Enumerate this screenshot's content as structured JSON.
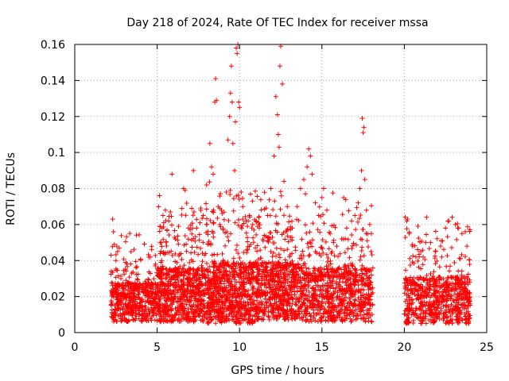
{
  "chart_data": {
    "type": "scatter",
    "title": "Day 218 of 2024, Rate Of TEC Index for receiver mssa",
    "xlabel": "GPS time / hours",
    "ylabel": "ROTI / TECUs",
    "xlim": [
      0,
      25
    ],
    "ylim": [
      0,
      0.16
    ],
    "x_ticks": [
      0,
      5,
      10,
      15,
      20,
      25
    ],
    "y_ticks": [
      0,
      0.02,
      0.04,
      0.06,
      0.08,
      0.1,
      0.12,
      0.14,
      0.16
    ],
    "x_tick_labels": [
      "0",
      "5",
      "10",
      "15",
      "20",
      "25"
    ],
    "y_tick_labels": [
      "0",
      "0.02",
      "0.04",
      "0.06",
      "0.08",
      "0.1",
      "0.12",
      "0.14",
      "0.16"
    ],
    "grid": true,
    "marker": "+",
    "color": "#ff0000",
    "series": [
      {
        "name": "ROTI",
        "points": [
          [
            2.2,
            0.043
          ],
          [
            2.3,
            0.063
          ],
          [
            2.35,
            0.056
          ],
          [
            2.4,
            0.049
          ],
          [
            2.5,
            0.04
          ],
          [
            2.55,
            0.048
          ],
          [
            2.6,
            0.045
          ],
          [
            2.7,
            0.047
          ],
          [
            2.8,
            0.03
          ],
          [
            3.0,
            0.022
          ],
          [
            3.3,
            0.018
          ],
          [
            3.6,
            0.02
          ],
          [
            3.9,
            0.025
          ],
          [
            4.2,
            0.022
          ],
          [
            4.6,
            0.019
          ],
          [
            4.9,
            0.038
          ],
          [
            5.1,
            0.031
          ],
          [
            5.25,
            0.05
          ],
          [
            5.3,
            0.058
          ],
          [
            5.35,
            0.065
          ],
          [
            5.4,
            0.061
          ],
          [
            5.5,
            0.068
          ],
          [
            5.6,
            0.057
          ],
          [
            5.7,
            0.062
          ],
          [
            5.8,
            0.067
          ],
          [
            5.9,
            0.088
          ],
          [
            6.1,
            0.052
          ],
          [
            6.3,
            0.059
          ],
          [
            6.5,
            0.069
          ],
          [
            6.6,
            0.08
          ],
          [
            6.7,
            0.079
          ],
          [
            6.9,
            0.058
          ],
          [
            7.1,
            0.069
          ],
          [
            7.2,
            0.09
          ],
          [
            7.4,
            0.058
          ],
          [
            7.6,
            0.061
          ],
          [
            7.8,
            0.065
          ],
          [
            8.0,
            0.082
          ],
          [
            8.2,
            0.105
          ],
          [
            8.3,
            0.092
          ],
          [
            8.4,
            0.088
          ],
          [
            8.5,
            0.128
          ],
          [
            8.55,
            0.141
          ],
          [
            8.6,
            0.129
          ],
          [
            8.7,
            0.07
          ],
          [
            8.8,
            0.06
          ],
          [
            9.0,
            0.057
          ],
          [
            9.2,
            0.078
          ],
          [
            9.3,
            0.107
          ],
          [
            9.4,
            0.12
          ],
          [
            9.45,
            0.133
          ],
          [
            9.5,
            0.148
          ],
          [
            9.55,
            0.128
          ],
          [
            9.6,
            0.105
          ],
          [
            9.7,
            0.09
          ],
          [
            9.75,
            0.117
          ],
          [
            9.8,
            0.158
          ],
          [
            9.85,
            0.155
          ],
          [
            9.9,
            0.16
          ],
          [
            9.95,
            0.128
          ],
          [
            10.0,
            0.125
          ],
          [
            10.1,
            0.078
          ],
          [
            10.2,
            0.07
          ],
          [
            10.4,
            0.062
          ],
          [
            10.6,
            0.065
          ],
          [
            10.8,
            0.06
          ],
          [
            11.0,
            0.062
          ],
          [
            11.2,
            0.058
          ],
          [
            11.5,
            0.054
          ],
          [
            11.7,
            0.065
          ],
          [
            11.9,
            0.08
          ],
          [
            12.1,
            0.098
          ],
          [
            12.2,
            0.131
          ],
          [
            12.3,
            0.121
          ],
          [
            12.35,
            0.11
          ],
          [
            12.4,
            0.103
          ],
          [
            12.45,
            0.148
          ],
          [
            12.5,
            0.159
          ],
          [
            12.6,
            0.138
          ],
          [
            12.7,
            0.084
          ],
          [
            12.9,
            0.07
          ],
          [
            13.2,
            0.058
          ],
          [
            13.5,
            0.07
          ],
          [
            13.7,
            0.08
          ],
          [
            13.9,
            0.085
          ],
          [
            14.0,
            0.077
          ],
          [
            14.1,
            0.092
          ],
          [
            14.2,
            0.102
          ],
          [
            14.3,
            0.098
          ],
          [
            14.4,
            0.088
          ],
          [
            14.6,
            0.072
          ],
          [
            14.8,
            0.065
          ],
          [
            15.0,
            0.075
          ],
          [
            15.1,
            0.08
          ],
          [
            15.3,
            0.068
          ],
          [
            15.5,
            0.055
          ],
          [
            15.7,
            0.05
          ],
          [
            15.9,
            0.048
          ],
          [
            16.2,
            0.052
          ],
          [
            16.5,
            0.058
          ],
          [
            16.8,
            0.062
          ],
          [
            17.0,
            0.065
          ],
          [
            17.2,
            0.072
          ],
          [
            17.3,
            0.08
          ],
          [
            17.4,
            0.09
          ],
          [
            17.45,
            0.119
          ],
          [
            17.5,
            0.111
          ],
          [
            17.55,
            0.114
          ],
          [
            17.6,
            0.085
          ],
          [
            17.7,
            0.068
          ],
          [
            17.9,
            0.06
          ],
          [
            18.0,
            0.055
          ],
          [
            20.05,
            0.064
          ],
          [
            20.15,
            0.062
          ],
          [
            20.3,
            0.055
          ],
          [
            20.5,
            0.048
          ],
          [
            20.7,
            0.042
          ],
          [
            21.0,
            0.045
          ],
          [
            21.3,
            0.05
          ],
          [
            21.35,
            0.064
          ],
          [
            21.6,
            0.05
          ],
          [
            21.9,
            0.045
          ],
          [
            22.2,
            0.048
          ],
          [
            22.5,
            0.058
          ],
          [
            22.7,
            0.062
          ],
          [
            22.9,
            0.064
          ],
          [
            23.1,
            0.06
          ],
          [
            23.3,
            0.058
          ],
          [
            23.5,
            0.055
          ],
          [
            23.7,
            0.056
          ],
          [
            23.8,
            0.048
          ]
        ]
      }
    ]
  }
}
